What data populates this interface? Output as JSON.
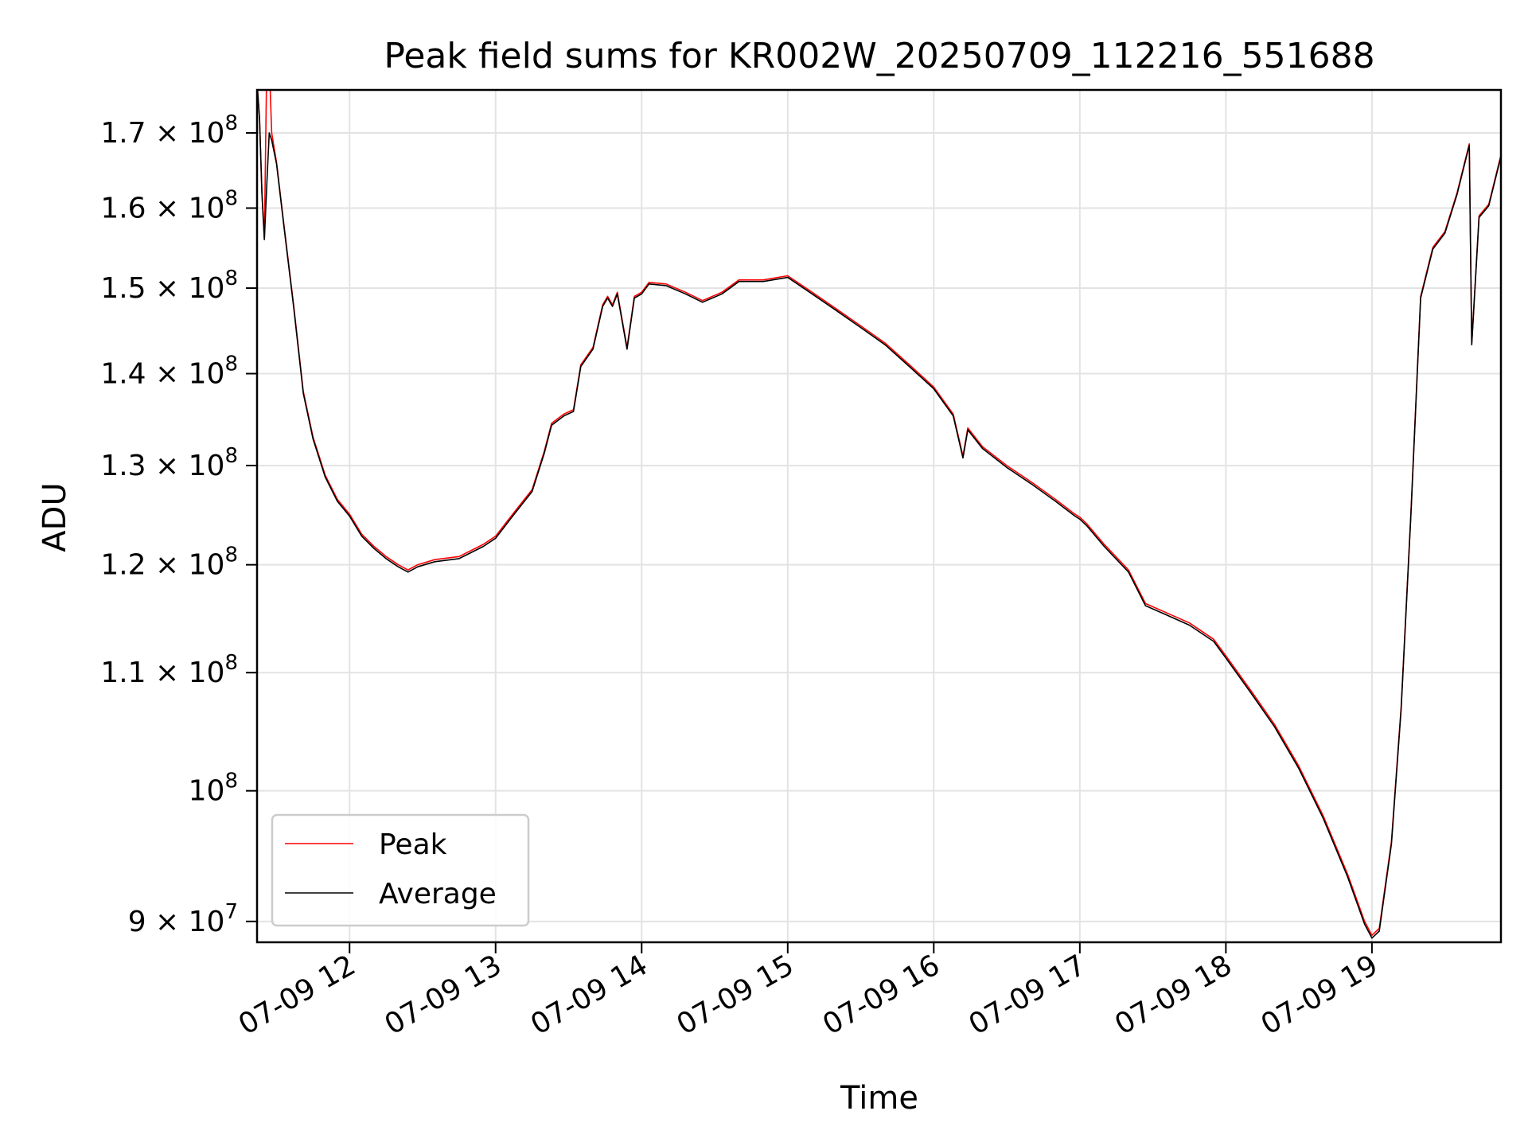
{
  "chart_data": {
    "type": "line",
    "title": "Peak field sums for KR002W_20250709_112216_551688",
    "xlabel": "Time",
    "ylabel": "ADU",
    "yscale": "log",
    "grid": true,
    "legend_position": "lower-left",
    "xlim": [
      "2025-07-09 11:22",
      "2025-07-09 19:53"
    ],
    "ylim": [
      88500000,
      176000000
    ],
    "x_ticks": [
      {
        "t": "2025-07-09 12:00",
        "label": "07-09 12"
      },
      {
        "t": "2025-07-09 13:00",
        "label": "07-09 13"
      },
      {
        "t": "2025-07-09 14:00",
        "label": "07-09 14"
      },
      {
        "t": "2025-07-09 15:00",
        "label": "07-09 15"
      },
      {
        "t": "2025-07-09 16:00",
        "label": "07-09 16"
      },
      {
        "t": "2025-07-09 17:00",
        "label": "07-09 17"
      },
      {
        "t": "2025-07-09 18:00",
        "label": "07-09 18"
      },
      {
        "t": "2025-07-09 19:00",
        "label": "07-09 19"
      }
    ],
    "y_ticks": [
      {
        "v": 90000000,
        "mant": "9 × 10",
        "exp": "7"
      },
      {
        "v": 100000000,
        "mant": "10",
        "exp": "8"
      },
      {
        "v": 110000000,
        "mant": "1.1 × 10",
        "exp": "8"
      },
      {
        "v": 120000000,
        "mant": "1.2 × 10",
        "exp": "8"
      },
      {
        "v": 130000000,
        "mant": "1.3 × 10",
        "exp": "8"
      },
      {
        "v": 140000000,
        "mant": "1.4 × 10",
        "exp": "8"
      },
      {
        "v": 150000000,
        "mant": "1.5 × 10",
        "exp": "8"
      },
      {
        "v": 160000000,
        "mant": "1.6 × 10",
        "exp": "8"
      },
      {
        "v": 170000000,
        "mant": "1.7 × 10",
        "exp": "8"
      }
    ],
    "series": [
      {
        "name": "Peak",
        "color": "#ff0000",
        "points": [
          [
            "2025-07-09 11:22",
            177000000
          ],
          [
            "2025-07-09 11:23",
            172000000
          ],
          [
            "2025-07-09 11:24",
            162000000
          ],
          [
            "2025-07-09 11:25",
            156000000
          ],
          [
            "2025-07-09 11:26",
            180000000
          ],
          [
            "2025-07-09 11:27",
            180000000
          ],
          [
            "2025-07-09 11:28",
            170000000
          ],
          [
            "2025-07-09 11:30",
            166000000
          ],
          [
            "2025-07-09 11:33",
            158000000
          ],
          [
            "2025-07-09 11:37",
            148000000
          ],
          [
            "2025-07-09 11:41",
            138000000
          ],
          [
            "2025-07-09 11:45",
            133000000
          ],
          [
            "2025-07-09 11:50",
            129000000
          ],
          [
            "2025-07-09 11:55",
            126500000
          ],
          [
            "2025-07-09 12:00",
            125000000
          ],
          [
            "2025-07-09 12:05",
            123000000
          ],
          [
            "2025-07-09 12:10",
            121800000
          ],
          [
            "2025-07-09 12:15",
            120800000
          ],
          [
            "2025-07-09 12:20",
            120000000
          ],
          [
            "2025-07-09 12:24",
            119500000
          ],
          [
            "2025-07-09 12:28",
            120000000
          ],
          [
            "2025-07-09 12:35",
            120500000
          ],
          [
            "2025-07-09 12:45",
            120800000
          ],
          [
            "2025-07-09 12:55",
            122000000
          ],
          [
            "2025-07-09 13:00",
            122800000
          ],
          [
            "2025-07-09 13:07",
            125000000
          ],
          [
            "2025-07-09 13:15",
            127500000
          ],
          [
            "2025-07-09 13:20",
            131500000
          ],
          [
            "2025-07-09 13:23",
            134500000
          ],
          [
            "2025-07-09 13:28",
            135500000
          ],
          [
            "2025-07-09 13:32",
            136000000
          ],
          [
            "2025-07-09 13:35",
            141000000
          ],
          [
            "2025-07-09 13:40",
            143000000
          ],
          [
            "2025-07-09 13:44",
            148000000
          ],
          [
            "2025-07-09 13:46",
            149000000
          ],
          [
            "2025-07-09 13:48",
            148000000
          ],
          [
            "2025-07-09 13:50",
            149500000
          ],
          [
            "2025-07-09 13:54",
            143000000
          ],
          [
            "2025-07-09 13:57",
            149000000
          ],
          [
            "2025-07-09 14:00",
            149500000
          ],
          [
            "2025-07-09 14:03",
            150700000
          ],
          [
            "2025-07-09 14:10",
            150500000
          ],
          [
            "2025-07-09 14:18",
            149500000
          ],
          [
            "2025-07-09 14:25",
            148500000
          ],
          [
            "2025-07-09 14:33",
            149500000
          ],
          [
            "2025-07-09 14:40",
            151000000
          ],
          [
            "2025-07-09 14:50",
            151000000
          ],
          [
            "2025-07-09 15:00",
            151500000
          ],
          [
            "2025-07-09 15:10",
            149500000
          ],
          [
            "2025-07-09 15:20",
            147500000
          ],
          [
            "2025-07-09 15:30",
            145500000
          ],
          [
            "2025-07-09 15:40",
            143500000
          ],
          [
            "2025-07-09 15:50",
            141000000
          ],
          [
            "2025-07-09 16:00",
            138500000
          ],
          [
            "2025-07-09 16:08",
            135500000
          ],
          [
            "2025-07-09 16:12",
            131000000
          ],
          [
            "2025-07-09 16:14",
            134000000
          ],
          [
            "2025-07-09 16:20",
            132000000
          ],
          [
            "2025-07-09 16:30",
            130000000
          ],
          [
            "2025-07-09 16:40",
            128300000
          ],
          [
            "2025-07-09 16:50",
            126500000
          ],
          [
            "2025-07-09 16:58",
            125000000
          ],
          [
            "2025-07-09 17:00",
            124700000
          ],
          [
            "2025-07-09 17:03",
            124000000
          ],
          [
            "2025-07-09 17:10",
            122000000
          ],
          [
            "2025-07-09 17:20",
            119500000
          ],
          [
            "2025-07-09 17:27",
            116300000
          ],
          [
            "2025-07-09 17:35",
            115500000
          ],
          [
            "2025-07-09 17:45",
            114500000
          ],
          [
            "2025-07-09 17:55",
            113000000
          ],
          [
            "2025-07-09 18:00",
            111500000
          ],
          [
            "2025-07-09 18:10",
            108500000
          ],
          [
            "2025-07-09 18:20",
            105500000
          ],
          [
            "2025-07-09 18:30",
            102000000
          ],
          [
            "2025-07-09 18:40",
            98000000
          ],
          [
            "2025-07-09 18:50",
            93500000
          ],
          [
            "2025-07-09 18:57",
            90000000
          ],
          [
            "2025-07-09 19:00",
            89000000
          ],
          [
            "2025-07-09 19:03",
            89500000
          ],
          [
            "2025-07-09 19:08",
            96000000
          ],
          [
            "2025-07-09 19:12",
            107000000
          ],
          [
            "2025-07-09 19:16",
            125000000
          ],
          [
            "2025-07-09 19:20",
            149000000
          ],
          [
            "2025-07-09 19:25",
            155000000
          ],
          [
            "2025-07-09 19:30",
            157000000
          ],
          [
            "2025-07-09 19:35",
            162000000
          ],
          [
            "2025-07-09 19:40",
            168500000
          ],
          [
            "2025-07-09 19:41",
            143500000
          ],
          [
            "2025-07-09 19:44",
            159000000
          ],
          [
            "2025-07-09 19:48",
            160500000
          ],
          [
            "2025-07-09 19:53",
            167000000
          ]
        ]
      },
      {
        "name": "Average",
        "color": "#000000",
        "points": [
          [
            "2025-07-09 11:22",
            177000000
          ],
          [
            "2025-07-09 11:23",
            172000000
          ],
          [
            "2025-07-09 11:24",
            162000000
          ],
          [
            "2025-07-09 11:25",
            156000000
          ],
          [
            "2025-07-09 11:26",
            163000000
          ],
          [
            "2025-07-09 11:27",
            170000000
          ],
          [
            "2025-07-09 11:28",
            169000000
          ],
          [
            "2025-07-09 11:30",
            165800000
          ],
          [
            "2025-07-09 11:33",
            157800000
          ],
          [
            "2025-07-09 11:37",
            147800000
          ],
          [
            "2025-07-09 11:41",
            137800000
          ],
          [
            "2025-07-09 11:45",
            132800000
          ],
          [
            "2025-07-09 11:50",
            128800000
          ],
          [
            "2025-07-09 11:55",
            126300000
          ],
          [
            "2025-07-09 12:00",
            124800000
          ],
          [
            "2025-07-09 12:05",
            122800000
          ],
          [
            "2025-07-09 12:10",
            121600000
          ],
          [
            "2025-07-09 12:15",
            120600000
          ],
          [
            "2025-07-09 12:20",
            119800000
          ],
          [
            "2025-07-09 12:24",
            119300000
          ],
          [
            "2025-07-09 12:28",
            119800000
          ],
          [
            "2025-07-09 12:35",
            120300000
          ],
          [
            "2025-07-09 12:45",
            120600000
          ],
          [
            "2025-07-09 12:55",
            121800000
          ],
          [
            "2025-07-09 13:00",
            122600000
          ],
          [
            "2025-07-09 13:07",
            124800000
          ],
          [
            "2025-07-09 13:15",
            127300000
          ],
          [
            "2025-07-09 13:20",
            131300000
          ],
          [
            "2025-07-09 13:23",
            134300000
          ],
          [
            "2025-07-09 13:28",
            135300000
          ],
          [
            "2025-07-09 13:32",
            135800000
          ],
          [
            "2025-07-09 13:35",
            140800000
          ],
          [
            "2025-07-09 13:40",
            142800000
          ],
          [
            "2025-07-09 13:44",
            147800000
          ],
          [
            "2025-07-09 13:46",
            148800000
          ],
          [
            "2025-07-09 13:48",
            147800000
          ],
          [
            "2025-07-09 13:50",
            149300000
          ],
          [
            "2025-07-09 13:54",
            142800000
          ],
          [
            "2025-07-09 13:57",
            148800000
          ],
          [
            "2025-07-09 14:00",
            149300000
          ],
          [
            "2025-07-09 14:03",
            150500000
          ],
          [
            "2025-07-09 14:10",
            150300000
          ],
          [
            "2025-07-09 14:18",
            149300000
          ],
          [
            "2025-07-09 14:25",
            148300000
          ],
          [
            "2025-07-09 14:33",
            149300000
          ],
          [
            "2025-07-09 14:40",
            150800000
          ],
          [
            "2025-07-09 14:50",
            150800000
          ],
          [
            "2025-07-09 15:00",
            151300000
          ],
          [
            "2025-07-09 15:10",
            149300000
          ],
          [
            "2025-07-09 15:20",
            147300000
          ],
          [
            "2025-07-09 15:30",
            145300000
          ],
          [
            "2025-07-09 15:40",
            143300000
          ],
          [
            "2025-07-09 15:50",
            140800000
          ],
          [
            "2025-07-09 16:00",
            138300000
          ],
          [
            "2025-07-09 16:08",
            135300000
          ],
          [
            "2025-07-09 16:12",
            130800000
          ],
          [
            "2025-07-09 16:14",
            133800000
          ],
          [
            "2025-07-09 16:20",
            131800000
          ],
          [
            "2025-07-09 16:30",
            129800000
          ],
          [
            "2025-07-09 16:40",
            128100000
          ],
          [
            "2025-07-09 16:50",
            126300000
          ],
          [
            "2025-07-09 16:58",
            124800000
          ],
          [
            "2025-07-09 17:00",
            124500000
          ],
          [
            "2025-07-09 17:03",
            123800000
          ],
          [
            "2025-07-09 17:10",
            121800000
          ],
          [
            "2025-07-09 17:20",
            119300000
          ],
          [
            "2025-07-09 17:27",
            116100000
          ],
          [
            "2025-07-09 17:35",
            115300000
          ],
          [
            "2025-07-09 17:45",
            114300000
          ],
          [
            "2025-07-09 17:55",
            112800000
          ],
          [
            "2025-07-09 18:00",
            111300000
          ],
          [
            "2025-07-09 18:10",
            108300000
          ],
          [
            "2025-07-09 18:20",
            105300000
          ],
          [
            "2025-07-09 18:30",
            101800000
          ],
          [
            "2025-07-09 18:40",
            97800000
          ],
          [
            "2025-07-09 18:50",
            93300000
          ],
          [
            "2025-07-09 18:57",
            89800000
          ],
          [
            "2025-07-09 19:00",
            88800000
          ],
          [
            "2025-07-09 19:03",
            89300000
          ],
          [
            "2025-07-09 19:08",
            95800000
          ],
          [
            "2025-07-09 19:12",
            106800000
          ],
          [
            "2025-07-09 19:16",
            124800000
          ],
          [
            "2025-07-09 19:20",
            148800000
          ],
          [
            "2025-07-09 19:25",
            154800000
          ],
          [
            "2025-07-09 19:30",
            156800000
          ],
          [
            "2025-07-09 19:35",
            161800000
          ],
          [
            "2025-07-09 19:40",
            168300000
          ],
          [
            "2025-07-09 19:41",
            143300000
          ],
          [
            "2025-07-09 19:44",
            158800000
          ],
          [
            "2025-07-09 19:48",
            160300000
          ],
          [
            "2025-07-09 19:53",
            166800000
          ]
        ]
      }
    ]
  }
}
